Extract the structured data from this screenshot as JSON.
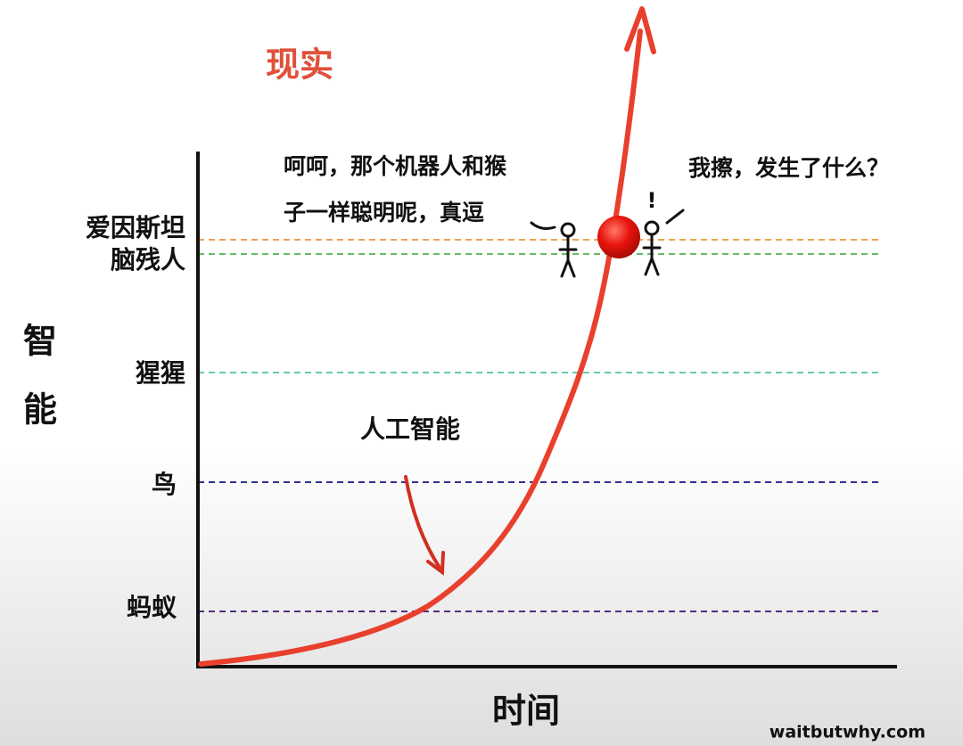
{
  "title": "现实",
  "y_axis_label": [
    "智",
    "能"
  ],
  "x_axis_label": "时间",
  "levels": [
    "爱因斯坦",
    "脑残人",
    "猩猩",
    "鸟",
    "蚂蚁"
  ],
  "curve_label": "人工智能",
  "speech": {
    "left": [
      "呵呵，那个机器人和猴",
      "子一样聪明呢，真逗"
    ],
    "right": "我擦，发生了什么？",
    "exclamation": "!"
  },
  "credit": "waitbutwhy.com"
}
